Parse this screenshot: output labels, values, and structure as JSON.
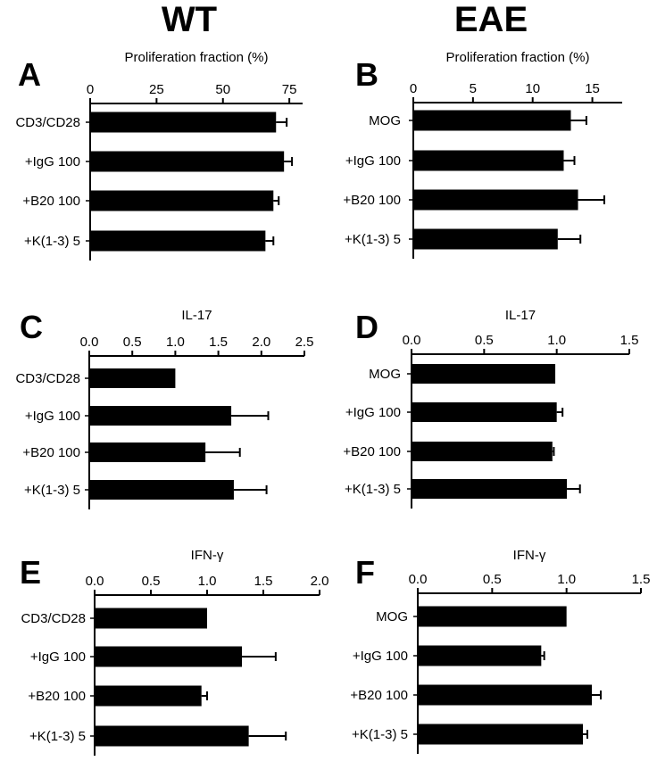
{
  "columns": {
    "left": "WT",
    "right": "EAE"
  },
  "chart_data": [
    {
      "type": "bar",
      "orientation": "horizontal",
      "panel": "A",
      "group": "WT",
      "title": "Proliferation fraction (%)",
      "categories": [
        "CD3/CD28",
        "+IgG 100",
        "+B20 100",
        "+K(1-3) 5"
      ],
      "values": [
        70,
        73,
        69,
        66
      ],
      "errors": [
        4,
        3,
        2,
        3
      ],
      "ticks": [
        0,
        25,
        50,
        75
      ],
      "tick_labels": [
        "0",
        "25",
        "50",
        "75"
      ],
      "xlim": [
        0,
        80
      ]
    },
    {
      "type": "bar",
      "orientation": "horizontal",
      "panel": "B",
      "group": "EAE",
      "title": "Proliferation fraction (%)",
      "categories": [
        "MOG",
        "+IgG 100",
        "+B20 100",
        "+K(1-3) 5"
      ],
      "values": [
        13.2,
        12.6,
        13.8,
        12.1
      ],
      "errors": [
        1.3,
        0.9,
        2.2,
        1.9
      ],
      "ticks": [
        0,
        5,
        10,
        15
      ],
      "tick_labels": [
        "0",
        "5",
        "10",
        "15"
      ],
      "xlim": [
        0,
        17.5
      ]
    },
    {
      "type": "bar",
      "orientation": "horizontal",
      "panel": "C",
      "group": "WT",
      "title": "IL-17",
      "categories": [
        "CD3/CD28",
        "+IgG 100",
        "+B20 100",
        "+K(1-3) 5"
      ],
      "values": [
        1.0,
        1.65,
        1.35,
        1.68
      ],
      "errors": [
        0,
        0.43,
        0.4,
        0.38
      ],
      "ticks": [
        0,
        0.5,
        1.0,
        1.5,
        2.0,
        2.5
      ],
      "tick_labels": [
        "0.0",
        "0.5",
        "1.0",
        "1.5",
        "2.0",
        "2.5"
      ],
      "xlim": [
        0,
        2.5
      ]
    },
    {
      "type": "bar",
      "orientation": "horizontal",
      "panel": "D",
      "group": "EAE",
      "title": "IL-17",
      "categories": [
        "MOG",
        "+IgG 100",
        "+B20 100",
        "+K(1-3) 5"
      ],
      "values": [
        0.99,
        1.0,
        0.97,
        1.07
      ],
      "errors": [
        0,
        0.04,
        0.01,
        0.09
      ],
      "ticks": [
        0,
        0.5,
        1.0,
        1.5
      ],
      "tick_labels": [
        "0.0",
        "0.5",
        "1.0",
        "1.5"
      ],
      "xlim": [
        0,
        1.5
      ]
    },
    {
      "type": "bar",
      "orientation": "horizontal",
      "panel": "E",
      "group": "WT",
      "title": "IFN-γ",
      "categories": [
        "CD3/CD28",
        "+IgG 100",
        "+B20 100",
        "+K(1-3) 5"
      ],
      "values": [
        1.0,
        1.31,
        0.95,
        1.37
      ],
      "errors": [
        0,
        0.3,
        0.05,
        0.33
      ],
      "ticks": [
        0,
        0.5,
        1.0,
        1.5,
        2.0
      ],
      "tick_labels": [
        "0.0",
        "0.5",
        "1.0",
        "1.5",
        "2.0"
      ],
      "xlim": [
        0,
        2.0
      ]
    },
    {
      "type": "bar",
      "orientation": "horizontal",
      "panel": "F",
      "group": "EAE",
      "title": "IFN-γ",
      "categories": [
        "MOG",
        "+IgG 100",
        "+B20 100",
        "+K(1-3) 5"
      ],
      "values": [
        1.0,
        0.83,
        1.17,
        1.11
      ],
      "errors": [
        0,
        0.02,
        0.06,
        0.03
      ],
      "ticks": [
        0,
        0.5,
        1.0,
        1.5
      ],
      "tick_labels": [
        "0.0",
        "0.5",
        "1.0",
        "1.5"
      ],
      "xlim": [
        0,
        1.5
      ]
    }
  ]
}
